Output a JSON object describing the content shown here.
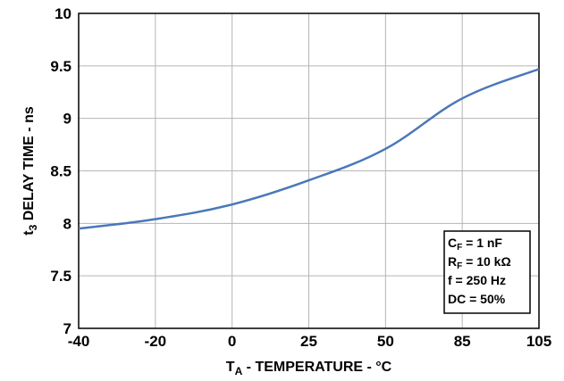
{
  "chart_data": {
    "type": "line",
    "categories": [
      "-40",
      "-20",
      "0",
      "25",
      "50",
      "85",
      "105"
    ],
    "series": [
      {
        "values": [
          7.95,
          8.04,
          8.18,
          8.41,
          8.71,
          9.19,
          9.47
        ]
      }
    ],
    "ylim": [
      7,
      10
    ],
    "yticks": [
      "10",
      "9.5",
      "9",
      "8.5",
      "8",
      "7.5",
      "7"
    ],
    "xlabel": {
      "main": "T",
      "sub": "A",
      "rest": " - TEMPERATURE - °C"
    },
    "ylabel": {
      "main": "t",
      "sub": "3",
      "rest": " DELAY TIME - ns"
    },
    "grid": true,
    "line_color": "#4a78b8",
    "legend_box": [
      {
        "main": "C",
        "sub": "F",
        "rest": " = 1 nF"
      },
      {
        "main": "R",
        "sub": "F",
        "rest": " = 10 kΩ"
      },
      {
        "main": "f = 250 Hz",
        "sub": "",
        "rest": ""
      },
      {
        "main": "DC = 50%",
        "sub": "",
        "rest": ""
      }
    ]
  }
}
